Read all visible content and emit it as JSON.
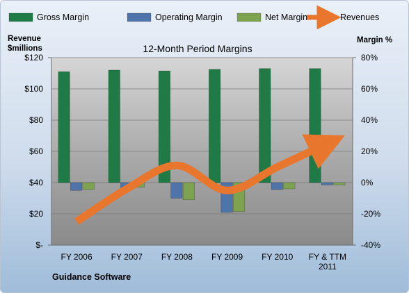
{
  "chart_data": {
    "type": "bar",
    "title": "12-Month Period Margins",
    "categories": [
      [
        "FY 2006"
      ],
      [
        "FY 2007"
      ],
      [
        "FY 2008"
      ],
      [
        "FY 2009"
      ],
      [
        "FY 2010"
      ],
      [
        "FY & TTM",
        "2011"
      ]
    ],
    "series": [
      {
        "name": "Gross Margin",
        "type": "bar",
        "axis": "right",
        "color": "#1f7a45",
        "values": [
          71,
          72,
          71.5,
          72.5,
          73,
          73
        ]
      },
      {
        "name": "Operating Margin",
        "type": "bar",
        "axis": "right",
        "color": "#4f74aa",
        "values": [
          -5,
          -3.5,
          -10,
          -19,
          -4.5,
          -1.5
        ]
      },
      {
        "name": "Net Margin",
        "type": "bar",
        "axis": "right",
        "color": "#7ea350",
        "values": [
          -4.5,
          -3,
          -11,
          -18.5,
          -4,
          -1.5
        ]
      },
      {
        "name": "Revenues",
        "type": "line",
        "axis": "left",
        "color": "#e8762d",
        "values": [
          15,
          36,
          51,
          35,
          50,
          65
        ]
      }
    ],
    "left_axis": {
      "label": [
        "Revenue",
        "$millions"
      ],
      "ylim": [
        0,
        120
      ],
      "ticks": [
        0,
        20,
        40,
        60,
        80,
        100,
        120
      ],
      "tick_labels": [
        "$-",
        "$20",
        "$40",
        "$60",
        "$80",
        "$100",
        "$120"
      ]
    },
    "right_axis": {
      "label": "Margin %",
      "ylim": [
        -40,
        80
      ],
      "ticks": [
        -40,
        -20,
        0,
        20,
        40,
        60,
        80
      ],
      "tick_labels": [
        "-40%",
        "-20%",
        "0%",
        "20%",
        "40%",
        "60%",
        "80%"
      ]
    },
    "legend_position": "top",
    "grid": true,
    "footer": "Guidance Software"
  }
}
